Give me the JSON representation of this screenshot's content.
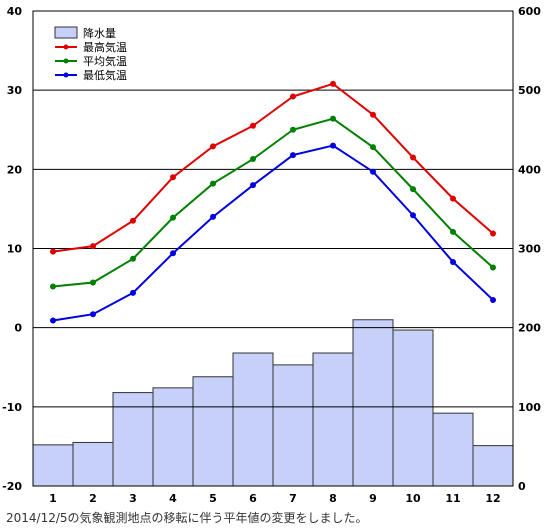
{
  "footnote": "2014/12/5の気象観測地点の移転に伴う平年値の変更をしました。",
  "chart_data": {
    "type": "bar+line",
    "categories": [
      "1",
      "2",
      "3",
      "4",
      "5",
      "6",
      "7",
      "8",
      "9",
      "10",
      "11",
      "12"
    ],
    "left_axis": {
      "ylim": [
        -20,
        40
      ],
      "ticks": [
        "40",
        "30",
        "20",
        "10",
        "0",
        "-10",
        "-20"
      ]
    },
    "right_axis": {
      "ylim": [
        0,
        600
      ],
      "ticks": [
        "600",
        "500",
        "400",
        "300",
        "200",
        "100",
        "0"
      ]
    },
    "grid_y": true,
    "legend_position": "top-left",
    "bar_series": {
      "name": "降水量",
      "axis": "right",
      "color": "#c6d0f8",
      "values": [
        52,
        55,
        118,
        124,
        138,
        168,
        153,
        168,
        210,
        197,
        92,
        51
      ]
    },
    "series": [
      {
        "name": "最高気温",
        "axis": "left",
        "color": "#e00000",
        "values": [
          9.6,
          10.3,
          13.5,
          19.0,
          22.9,
          25.5,
          29.2,
          30.8,
          26.9,
          21.5,
          16.3,
          11.9
        ]
      },
      {
        "name": "平均気温",
        "axis": "left",
        "color": "#008000",
        "values": [
          5.2,
          5.7,
          8.7,
          13.9,
          18.2,
          21.3,
          25.0,
          26.4,
          22.8,
          17.5,
          12.1,
          7.6
        ]
      },
      {
        "name": "最低気温",
        "axis": "left",
        "color": "#0000e0",
        "values": [
          0.9,
          1.7,
          4.4,
          9.4,
          14.0,
          18.0,
          21.8,
          23.0,
          19.7,
          14.2,
          8.3,
          3.5
        ]
      }
    ]
  }
}
